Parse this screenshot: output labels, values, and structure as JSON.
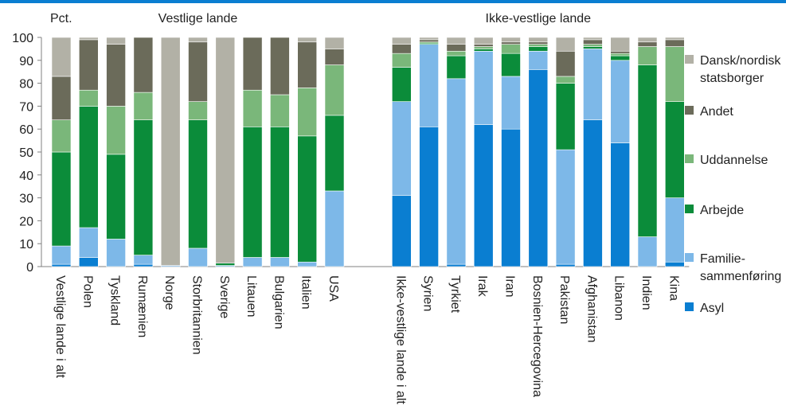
{
  "chart_data": {
    "type": "bar",
    "stacked": true,
    "ylabel": "Pct.",
    "ylim": [
      0,
      100
    ],
    "yticks": [
      0,
      10,
      20,
      30,
      40,
      50,
      60,
      70,
      80,
      90,
      100
    ],
    "grid": false,
    "legend_position": "right",
    "groups": [
      {
        "label": "Vestlige lande",
        "start": 0,
        "end": 10
      },
      {
        "label": "Ikke-vestlige lande",
        "start": 11,
        "end": 21
      }
    ],
    "categories": [
      "Vestlige lande i alt",
      "Polen",
      "Tyskland",
      "Rumænien",
      "Norge",
      "Storbritannien",
      "Sverige",
      "Litauen",
      "Bulgarien",
      "Italien",
      "USA",
      "Ikke-vestlige lande i alt",
      "Syrien",
      "Tyrkiet",
      "Irak",
      "Iran",
      "Bosnien-Hercegovina",
      "Pakistan",
      "Afghanistan",
      "Libanon",
      "Indien",
      "Kina"
    ],
    "series": [
      {
        "name": "Asyl",
        "color": "#0a7ed1",
        "values": [
          1,
          4,
          0,
          1,
          0,
          0,
          0,
          0,
          0,
          0,
          0,
          31,
          61,
          1,
          62,
          60,
          86,
          1,
          64,
          54,
          0,
          2
        ]
      },
      {
        "name": "Familie-sammenføring",
        "color": "#7db8e8",
        "values": [
          8,
          13,
          12,
          4,
          0.5,
          8,
          0.5,
          4,
          4,
          2,
          33,
          41,
          36,
          81,
          32,
          23,
          8,
          50,
          31,
          36,
          13,
          28
        ]
      },
      {
        "name": "Arbejde",
        "color": "#0b8c3a",
        "values": [
          41,
          53,
          37,
          59,
          0,
          56,
          1,
          57,
          57,
          55,
          33,
          15,
          0.5,
          10,
          1,
          10,
          2,
          29,
          1,
          2,
          75,
          42
        ]
      },
      {
        "name": "Uddannelse",
        "color": "#7ab77a",
        "values": [
          14,
          7,
          21,
          12,
          0,
          8,
          0,
          16,
          14,
          21,
          22,
          6,
          0.5,
          2,
          1,
          4,
          1,
          3,
          1,
          1,
          8,
          24
        ]
      },
      {
        "name": "Andet",
        "color": "#6b6b5a",
        "values": [
          19,
          22,
          27,
          24,
          0,
          26,
          0,
          23,
          25,
          20,
          7,
          4,
          1,
          3,
          1,
          1,
          1,
          11,
          2,
          1,
          2,
          3
        ]
      },
      {
        "name": "Dansk/nordisk statsborger",
        "color": "#b2b1a6",
        "values": [
          17,
          1,
          3,
          0,
          99.5,
          2,
          98.5,
          0,
          0,
          2,
          5,
          3,
          1,
          3,
          3,
          2,
          2,
          6,
          1,
          6,
          2,
          1
        ]
      }
    ],
    "legend_order": [
      5,
      4,
      3,
      2,
      1,
      0
    ]
  }
}
